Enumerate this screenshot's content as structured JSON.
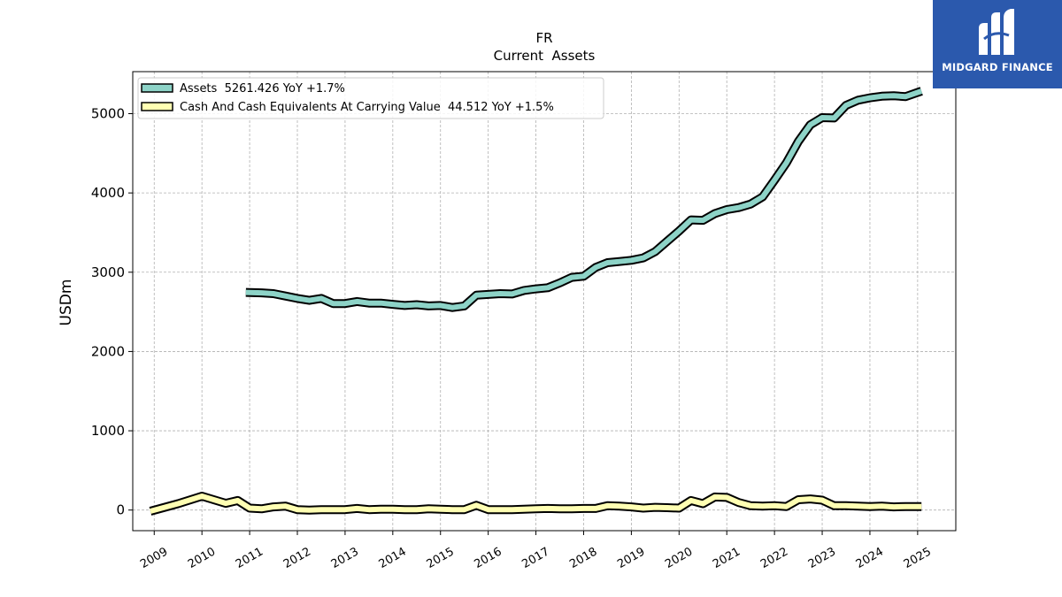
{
  "brand": {
    "name": "MIDGARD FINANCE",
    "color": "#2b59ad"
  },
  "chart_data": {
    "type": "line",
    "title": "FR",
    "subtitle": "Current  Assets",
    "xlabel": "",
    "ylabel": "USDm",
    "xlim": [
      2008.55,
      2025.8
    ],
    "ylim": [
      -260,
      5530
    ],
    "x_ticks": [
      2009,
      2010,
      2011,
      2012,
      2013,
      2014,
      2015,
      2016,
      2017,
      2018,
      2019,
      2020,
      2021,
      2022,
      2023,
      2024,
      2025
    ],
    "y_ticks": [
      0,
      1000,
      2000,
      3000,
      4000,
      5000
    ],
    "grid": true,
    "legend_position": "top-left",
    "series": [
      {
        "name": "Assets  5261.426 YoY +1.7%",
        "color": "#8dd3c7",
        "x": [
          2010.92,
          2011.25,
          2011.5,
          2011.75,
          2012.0,
          2012.25,
          2012.5,
          2012.75,
          2013.0,
          2013.25,
          2013.5,
          2013.75,
          2014.0,
          2014.25,
          2014.5,
          2014.75,
          2015.0,
          2015.25,
          2015.5,
          2015.75,
          2016.0,
          2016.25,
          2016.5,
          2016.75,
          2017.0,
          2017.25,
          2017.5,
          2017.75,
          2018.0,
          2018.25,
          2018.5,
          2018.75,
          2019.0,
          2019.25,
          2019.5,
          2019.75,
          2020.0,
          2020.25,
          2020.5,
          2020.75,
          2021.0,
          2021.25,
          2021.5,
          2021.75,
          2022.0,
          2022.25,
          2022.5,
          2022.75,
          2023.0,
          2023.25,
          2023.5,
          2023.75,
          2024.0,
          2024.25,
          2024.5,
          2024.75,
          2025.08
        ],
        "values": [
          2745,
          2740,
          2730,
          2700,
          2670,
          2645,
          2670,
          2605,
          2605,
          2630,
          2610,
          2610,
          2595,
          2580,
          2590,
          2575,
          2580,
          2555,
          2575,
          2710,
          2720,
          2730,
          2725,
          2770,
          2790,
          2805,
          2865,
          2935,
          2950,
          3060,
          3120,
          3135,
          3150,
          3180,
          3260,
          3390,
          3520,
          3660,
          3655,
          3740,
          3790,
          3815,
          3860,
          3950,
          4160,
          4380,
          4650,
          4860,
          4950,
          4945,
          5105,
          5170,
          5200,
          5220,
          5225,
          5215,
          5285
        ]
      },
      {
        "name": "Cash And Cash Equivalents At Carrying Value  44.512 YoY +1.5%",
        "color": "#ffffb3",
        "x": [
          2008.92,
          2009.5,
          2010.0,
          2010.5,
          2010.75,
          2011.0,
          2011.25,
          2011.5,
          2011.75,
          2012.0,
          2012.25,
          2012.5,
          2012.75,
          2013.0,
          2013.25,
          2013.5,
          2013.75,
          2014.0,
          2014.25,
          2014.5,
          2014.75,
          2015.0,
          2015.25,
          2015.5,
          2015.75,
          2016.0,
          2016.25,
          2016.5,
          2016.75,
          2017.0,
          2017.25,
          2017.5,
          2017.75,
          2018.0,
          2018.25,
          2018.5,
          2018.75,
          2019.0,
          2019.25,
          2019.5,
          2019.75,
          2020.0,
          2020.25,
          2020.5,
          2020.75,
          2021.0,
          2021.25,
          2021.5,
          2021.75,
          2022.0,
          2022.25,
          2022.5,
          2022.75,
          2023.0,
          2023.25,
          2023.5,
          2023.75,
          2024.0,
          2024.25,
          2024.5,
          2024.75,
          2025.08
        ],
        "values": [
          -15,
          80,
          175,
          85,
          120,
          25,
          15,
          40,
          50,
          5,
          0,
          5,
          5,
          5,
          20,
          5,
          10,
          10,
          5,
          5,
          15,
          10,
          5,
          5,
          60,
          5,
          5,
          5,
          10,
          15,
          20,
          15,
          15,
          20,
          20,
          55,
          50,
          40,
          25,
          35,
          30,
          25,
          120,
          80,
          165,
          160,
          95,
          55,
          50,
          55,
          45,
          130,
          140,
          125,
          55,
          55,
          50,
          45,
          50,
          40,
          45,
          45
        ]
      }
    ]
  }
}
